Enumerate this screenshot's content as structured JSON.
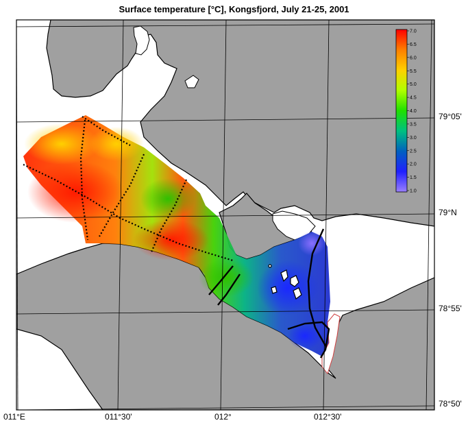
{
  "title": "Surface temperature [°C], Kongsfjord, July 21-25, 2001",
  "colorbar": {
    "min": 1.0,
    "max": 7.0,
    "ticks": [
      "7.0",
      "6.5",
      "6.0",
      "5.5",
      "5.0",
      "4.5",
      "4.0",
      "3.5",
      "3.0",
      "2.5",
      "2.0",
      "1.5",
      "1.0"
    ],
    "colors": [
      "#ff0000",
      "#ff7f00",
      "#ffd000",
      "#b0ff00",
      "#20e000",
      "#00c080",
      "#0060c0",
      "#2020ff",
      "#9a80ff"
    ]
  },
  "axes": {
    "lat_labels": [
      "79°05'",
      "79°N",
      "78°55'",
      "78°50'"
    ],
    "lon_labels": [
      "011°E",
      "011°30'",
      "012°",
      "012°30'"
    ]
  },
  "colors": {
    "land": "#a0a0a0",
    "water": "#ffffff",
    "grid": "#000000",
    "track": "#000000"
  }
}
